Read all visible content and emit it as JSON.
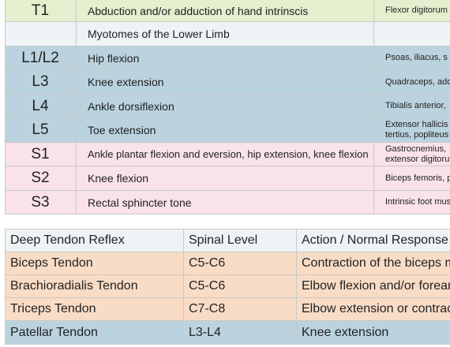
{
  "myotomes_table": {
    "rows": [
      {
        "level": "T1",
        "action": "Abduction and/or adduction of hand intrinscis",
        "muscles": [
          "Flexor digitorum"
        ]
      },
      {
        "level": "",
        "action": "Myotomes of the Lower Limb",
        "muscles": []
      },
      {
        "level": "L1/L2",
        "action": "Hip flexion",
        "muscles": [
          "Psoas, iliacus, s"
        ]
      },
      {
        "level": "L3",
        "action": "Knee extension",
        "muscles": [
          "Quadraceps, add"
        ]
      },
      {
        "level": "L4",
        "action": "Ankle dorsiflexion",
        "muscles": [
          "Tibialis anterior,"
        ]
      },
      {
        "level": "L5",
        "action": "Toe extension",
        "muscles": [
          "Extensor hallicis",
          "tertius, popliteus"
        ]
      },
      {
        "level": "S1",
        "action": "Ankle plantar flexion and eversion, hip extension, knee flexion",
        "muscles": [
          "Gastrocnemius,",
          "extensor digitoru"
        ]
      },
      {
        "level": "S2",
        "action": "Knee flexion",
        "muscles": [
          "Biceps femoris, p"
        ]
      },
      {
        "level": "S3",
        "action": "Rectal sphincter tone",
        "muscles": [
          "Intrinsic foot mus"
        ]
      }
    ]
  },
  "reflex_table": {
    "header": [
      "Deep Tendon Reflex",
      "Spinal Level",
      "Action / Normal Response"
    ],
    "rows": [
      [
        "Biceps Tendon",
        "C5-C6",
        "Contraction of the biceps m"
      ],
      [
        "Brachioradialis Tendon",
        "C5-C6",
        "Elbow flexion and/or forear"
      ],
      [
        "Triceps Tendon",
        "C7-C8",
        "Elbow extension or contrac"
      ],
      [
        "Patellar Tendon",
        "L3-L4",
        "Knee extension"
      ]
    ]
  }
}
